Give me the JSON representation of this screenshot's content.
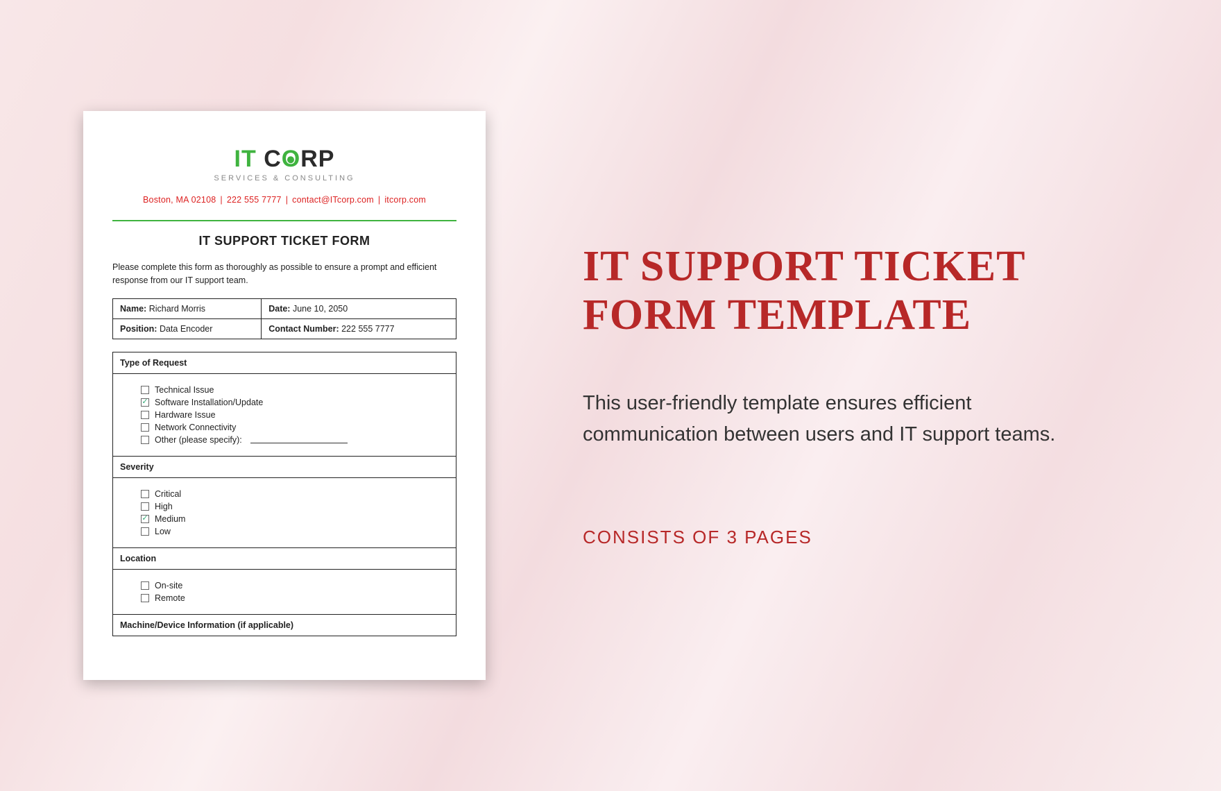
{
  "colors": {
    "accent_red": "#b72828",
    "logo_green": "#3fb33f",
    "text_dark": "#222222",
    "contact_red": "#d22222",
    "bg_tint": "#f6e5e7"
  },
  "document": {
    "logo": {
      "it": "IT",
      "corp": "CORP",
      "tagline": "SERVICES & CONSULTING"
    },
    "contact": {
      "address": "Boston, MA 02108",
      "phone": "222 555 7777",
      "email": "contact@ITcorp.com",
      "site": "itcorp.com"
    },
    "title": "IT SUPPORT TICKET FORM",
    "intro": "Please complete this form as thoroughly as possible to ensure a prompt and efficient response from our IT support team.",
    "info": {
      "name_label": "Name:",
      "name_value": "Richard Morris",
      "date_label": "Date:",
      "date_value": "June 10, 2050",
      "position_label": "Position:",
      "position_value": "Data Encoder",
      "contact_label": "Contact Number:",
      "contact_value": "222 555 7777"
    },
    "sections": {
      "request": {
        "header": "Type of Request",
        "options": [
          {
            "label": "Technical Issue",
            "checked": false
          },
          {
            "label": "Software Installation/Update",
            "checked": true
          },
          {
            "label": "Hardware Issue",
            "checked": false
          },
          {
            "label": "Network Connectivity",
            "checked": false
          },
          {
            "label": "Other (please specify):",
            "checked": false,
            "has_line": true
          }
        ]
      },
      "severity": {
        "header": "Severity",
        "options": [
          {
            "label": "Critical",
            "checked": false
          },
          {
            "label": "High",
            "checked": false
          },
          {
            "label": "Medium",
            "checked": true
          },
          {
            "label": "Low",
            "checked": false
          }
        ]
      },
      "location": {
        "header": "Location",
        "options": [
          {
            "label": "On-site",
            "checked": false
          },
          {
            "label": "Remote",
            "checked": false
          }
        ]
      },
      "machine": {
        "header": "Machine/Device Information (if applicable)"
      }
    }
  },
  "promo": {
    "headline": "IT SUPPORT TICKET FORM TEMPLATE",
    "description": "This user-friendly template ensures efficient communication between users and IT support teams.",
    "pages_note": "CONSISTS OF 3 PAGES"
  }
}
